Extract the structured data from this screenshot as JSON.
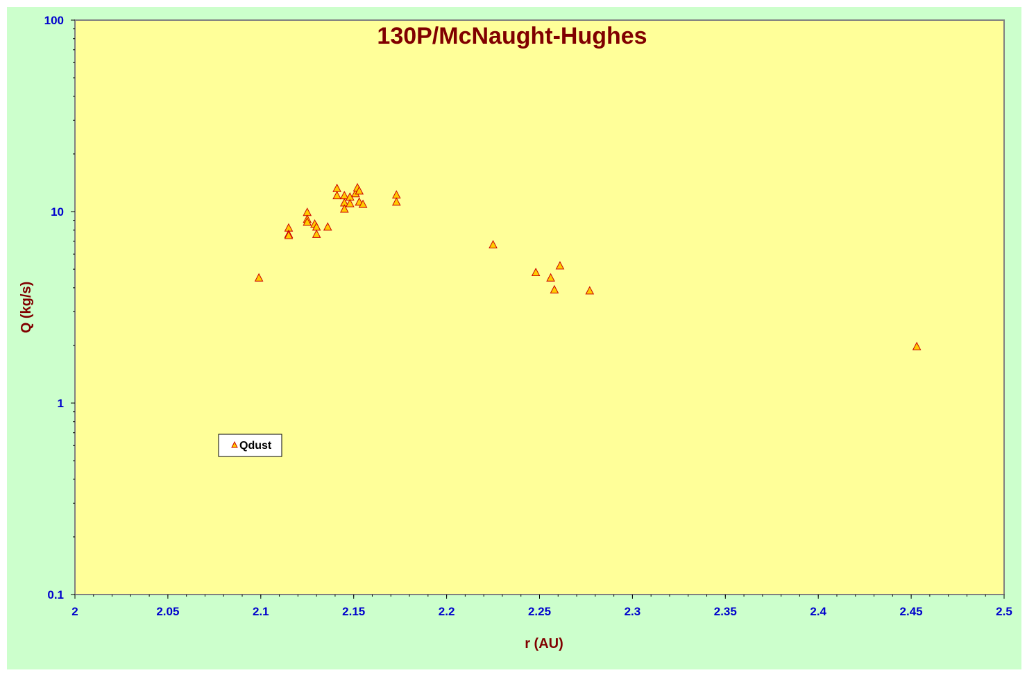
{
  "chart_data": {
    "type": "scatter",
    "title": "130P/McNaught-Hughes",
    "xlabel": "r (AU)",
    "ylabel": "Q (kg/s)",
    "xlim": [
      2,
      2.5
    ],
    "ylim": [
      0.1,
      100
    ],
    "yscale": "log",
    "x_ticks": [
      "2",
      "2.05",
      "2.1",
      "2.15",
      "2.2",
      "2.25",
      "2.3",
      "2.35",
      "2.4",
      "2.45",
      "2.5"
    ],
    "y_ticks": [
      "0.1",
      "1",
      "10",
      "100"
    ],
    "grid": false,
    "legend": {
      "position": "lower-left",
      "entries": [
        "Qdust"
      ]
    },
    "colors": {
      "plot_bg": "#ffff99",
      "chart_bg": "#ccffcc",
      "marker_fill": "#ffcc00",
      "marker_edge": "#cc0000",
      "axis_text": "#0000cc",
      "title_text": "#800000"
    },
    "series": [
      {
        "name": "Qdust",
        "marker": "triangle",
        "points": [
          [
            2.099,
            4.5
          ],
          [
            2.115,
            8.2
          ],
          [
            2.115,
            7.6
          ],
          [
            2.115,
            7.5
          ],
          [
            2.125,
            9.9
          ],
          [
            2.125,
            9.1
          ],
          [
            2.125,
            8.8
          ],
          [
            2.129,
            8.6
          ],
          [
            2.13,
            8.3
          ],
          [
            2.13,
            7.6
          ],
          [
            2.136,
            8.3
          ],
          [
            2.141,
            13.2
          ],
          [
            2.141,
            12.1
          ],
          [
            2.145,
            12.1
          ],
          [
            2.145,
            11.1
          ],
          [
            2.145,
            10.3
          ],
          [
            2.148,
            11.9
          ],
          [
            2.148,
            11.0
          ],
          [
            2.151,
            12.4
          ],
          [
            2.152,
            13.3
          ],
          [
            2.153,
            12.8
          ],
          [
            2.153,
            11.2
          ],
          [
            2.155,
            10.9
          ],
          [
            2.173,
            12.2
          ],
          [
            2.173,
            11.2
          ],
          [
            2.225,
            6.7
          ],
          [
            2.248,
            4.8
          ],
          [
            2.256,
            4.5
          ],
          [
            2.258,
            3.9
          ],
          [
            2.261,
            5.2
          ],
          [
            2.277,
            3.85
          ],
          [
            2.453,
            1.97
          ]
        ]
      }
    ]
  }
}
